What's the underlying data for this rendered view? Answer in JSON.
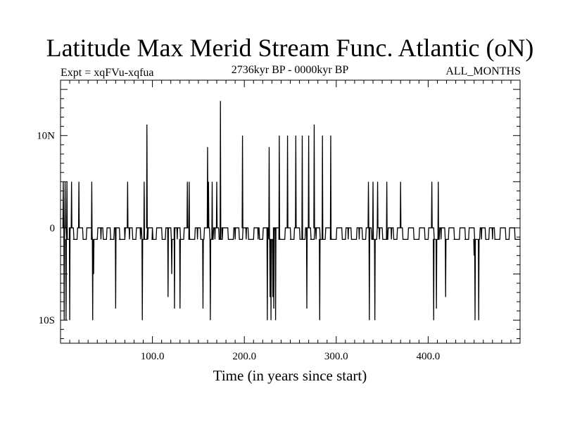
{
  "chart_data": {
    "type": "line",
    "title": "Latitude Max Merid Stream Func. Atlantic (oN)",
    "subtitle_left": "Expt = xqFVu-xqfua",
    "subtitle_center": "2736kyr BP - 0000kyr BP",
    "subtitle_right": "ALL_MONTHS",
    "xlabel": "Time (in years since start)",
    "ylabel": "",
    "xlim": [
      0,
      500
    ],
    "ylim": [
      -12.5,
      16
    ],
    "x_ticks": [
      100,
      200,
      300,
      400
    ],
    "x_tick_labels": [
      "100.0",
      "200.0",
      "300.0",
      "400.0"
    ],
    "y_ticks": [
      -10,
      0,
      10
    ],
    "y_tick_labels": [
      "10S",
      "0",
      "10N"
    ],
    "grid": false,
    "legend": "none",
    "line_color": "#000000",
    "base_levels": [
      0,
      -1.25
    ],
    "baseline_segments": [
      [
        2,
        6,
        0
      ],
      [
        6,
        10,
        -1.25
      ],
      [
        10,
        14,
        0
      ],
      [
        14,
        18,
        -1.25
      ],
      [
        18,
        24,
        0
      ],
      [
        24,
        28,
        -1.25
      ],
      [
        28,
        34,
        0
      ],
      [
        34,
        40,
        -1.25
      ],
      [
        40,
        46,
        0
      ],
      [
        46,
        50,
        -1.25
      ],
      [
        50,
        54,
        0
      ],
      [
        54,
        58,
        -1.25
      ],
      [
        58,
        64,
        0
      ],
      [
        64,
        70,
        -1.25
      ],
      [
        70,
        78,
        0
      ],
      [
        78,
        82,
        -1.25
      ],
      [
        82,
        88,
        0
      ],
      [
        88,
        94,
        -1.25
      ],
      [
        94,
        100,
        0
      ],
      [
        100,
        104,
        -1.25
      ],
      [
        104,
        110,
        0
      ],
      [
        110,
        114,
        -1.25
      ],
      [
        114,
        120,
        0
      ],
      [
        120,
        124,
        -1.25
      ],
      [
        124,
        130,
        0
      ],
      [
        130,
        134,
        -1.25
      ],
      [
        134,
        140,
        0
      ],
      [
        140,
        146,
        -1.25
      ],
      [
        146,
        152,
        0
      ],
      [
        152,
        156,
        -1.25
      ],
      [
        156,
        162,
        0
      ],
      [
        162,
        166,
        -1.25
      ],
      [
        166,
        172,
        0
      ],
      [
        172,
        176,
        -1.25
      ],
      [
        176,
        182,
        0
      ],
      [
        182,
        188,
        -1.25
      ],
      [
        188,
        194,
        0
      ],
      [
        194,
        198,
        -1.25
      ],
      [
        198,
        204,
        0
      ],
      [
        204,
        210,
        -1.25
      ],
      [
        210,
        216,
        0
      ],
      [
        216,
        220,
        -1.25
      ],
      [
        220,
        226,
        0
      ],
      [
        226,
        232,
        -1.25
      ],
      [
        232,
        238,
        0
      ],
      [
        238,
        244,
        -1.25
      ],
      [
        244,
        250,
        0
      ],
      [
        250,
        254,
        -1.25
      ],
      [
        254,
        260,
        0
      ],
      [
        260,
        266,
        -1.25
      ],
      [
        266,
        272,
        0
      ],
      [
        272,
        276,
        -1.25
      ],
      [
        276,
        282,
        0
      ],
      [
        282,
        288,
        -1.25
      ],
      [
        288,
        294,
        0
      ],
      [
        294,
        300,
        -1.25
      ],
      [
        300,
        306,
        0
      ],
      [
        306,
        310,
        -1.25
      ],
      [
        310,
        316,
        0
      ],
      [
        316,
        322,
        -1.25
      ],
      [
        322,
        328,
        0
      ],
      [
        328,
        332,
        -1.25
      ],
      [
        332,
        338,
        0
      ],
      [
        338,
        344,
        -1.25
      ],
      [
        344,
        350,
        0
      ],
      [
        350,
        356,
        -1.25
      ],
      [
        356,
        362,
        0
      ],
      [
        362,
        366,
        -1.25
      ],
      [
        366,
        372,
        0
      ],
      [
        372,
        378,
        -1.25
      ],
      [
        378,
        384,
        0
      ],
      [
        384,
        390,
        -1.25
      ],
      [
        390,
        396,
        0
      ],
      [
        396,
        400,
        -1.25
      ],
      [
        400,
        406,
        0
      ],
      [
        406,
        412,
        -1.25
      ],
      [
        412,
        418,
        0
      ],
      [
        418,
        422,
        -1.25
      ],
      [
        422,
        428,
        0
      ],
      [
        428,
        434,
        -1.25
      ],
      [
        434,
        440,
        0
      ],
      [
        440,
        444,
        -1.25
      ],
      [
        444,
        450,
        0
      ],
      [
        450,
        456,
        -1.25
      ],
      [
        456,
        462,
        0
      ],
      [
        462,
        466,
        -1.25
      ],
      [
        466,
        472,
        0
      ],
      [
        472,
        478,
        -1.25
      ],
      [
        478,
        484,
        0
      ],
      [
        484,
        488,
        -1.25
      ],
      [
        488,
        494,
        0
      ],
      [
        494,
        500,
        -1.25
      ]
    ],
    "spikes": [
      [
        3,
        5
      ],
      [
        4,
        -10
      ],
      [
        5,
        5
      ],
      [
        6,
        -10
      ],
      [
        7,
        5
      ],
      [
        8,
        -1.25
      ],
      [
        10,
        -10
      ],
      [
        12,
        5
      ],
      [
        14,
        -1.25
      ],
      [
        20,
        5
      ],
      [
        27,
        -1.25
      ],
      [
        34,
        5
      ],
      [
        35,
        -10
      ],
      [
        36,
        -5
      ],
      [
        38,
        -1.25
      ],
      [
        44,
        -1.25
      ],
      [
        54,
        -1.25
      ],
      [
        57,
        -1.25
      ],
      [
        60,
        -8.75
      ],
      [
        64,
        -1.25
      ],
      [
        68,
        -1.25
      ],
      [
        70,
        -1.25
      ],
      [
        71,
        0
      ],
      [
        72,
        0
      ],
      [
        73,
        5
      ],
      [
        75,
        -1.25
      ],
      [
        79,
        -1.25
      ],
      [
        87,
        -1.25
      ],
      [
        89,
        -10
      ],
      [
        91,
        5
      ],
      [
        94,
        11.2
      ],
      [
        95,
        -1.25
      ],
      [
        100,
        0
      ],
      [
        112,
        -1.25
      ],
      [
        117,
        -7.5
      ],
      [
        121,
        -5
      ],
      [
        124,
        -8.75
      ],
      [
        127,
        -1.25
      ],
      [
        130,
        -8.75
      ],
      [
        138,
        5
      ],
      [
        140,
        5
      ],
      [
        143,
        -1.25
      ],
      [
        149,
        -1.25
      ],
      [
        155,
        -8.75
      ],
      [
        158,
        0
      ],
      [
        160,
        8.75
      ],
      [
        161,
        5
      ],
      [
        163,
        -10
      ],
      [
        165,
        5
      ],
      [
        168,
        -1.25
      ],
      [
        170,
        5
      ],
      [
        174,
        13.75
      ],
      [
        176,
        -1.25
      ],
      [
        190,
        -1.25
      ],
      [
        198,
        10
      ],
      [
        202,
        -1.25
      ],
      [
        208,
        -1.25
      ],
      [
        215,
        -1.25
      ],
      [
        225,
        -10
      ],
      [
        227,
        8.75
      ],
      [
        228,
        -7.5
      ],
      [
        229,
        -10
      ],
      [
        231,
        -7.5
      ],
      [
        232,
        -8.75
      ],
      [
        234,
        -10
      ],
      [
        238,
        10
      ],
      [
        240,
        -1.25
      ],
      [
        247,
        10
      ],
      [
        250,
        -1.25
      ],
      [
        256,
        10
      ],
      [
        258,
        0
      ],
      [
        263,
        10
      ],
      [
        265,
        -1.25
      ],
      [
        268,
        -8.75
      ],
      [
        270,
        10
      ],
      [
        272,
        -1.25
      ],
      [
        276,
        11.2
      ],
      [
        278,
        -1.25
      ],
      [
        282,
        -10
      ],
      [
        285,
        10
      ],
      [
        287,
        -1.25
      ],
      [
        294,
        10
      ],
      [
        297,
        -1.25
      ],
      [
        313,
        -1.25
      ],
      [
        325,
        -1.25
      ],
      [
        335,
        5
      ],
      [
        336,
        -10
      ],
      [
        340,
        5
      ],
      [
        342,
        -10
      ],
      [
        345,
        5
      ],
      [
        347,
        -1.25
      ],
      [
        355,
        5
      ],
      [
        360,
        -1.25
      ],
      [
        370,
        5
      ],
      [
        373,
        -1.25
      ],
      [
        388,
        -1.25
      ],
      [
        404,
        5
      ],
      [
        406,
        -10
      ],
      [
        409,
        -8.75
      ],
      [
        411,
        5
      ],
      [
        414,
        -1.25
      ],
      [
        419,
        -7.5
      ],
      [
        428,
        -1.25
      ],
      [
        440,
        -1.25
      ],
      [
        450,
        -3
      ],
      [
        451,
        -10
      ],
      [
        453,
        -1.25
      ],
      [
        455,
        -10
      ],
      [
        458,
        -1.25
      ],
      [
        470,
        -1.25
      ],
      [
        485,
        -1.25
      ],
      [
        497,
        -1.25
      ]
    ]
  }
}
